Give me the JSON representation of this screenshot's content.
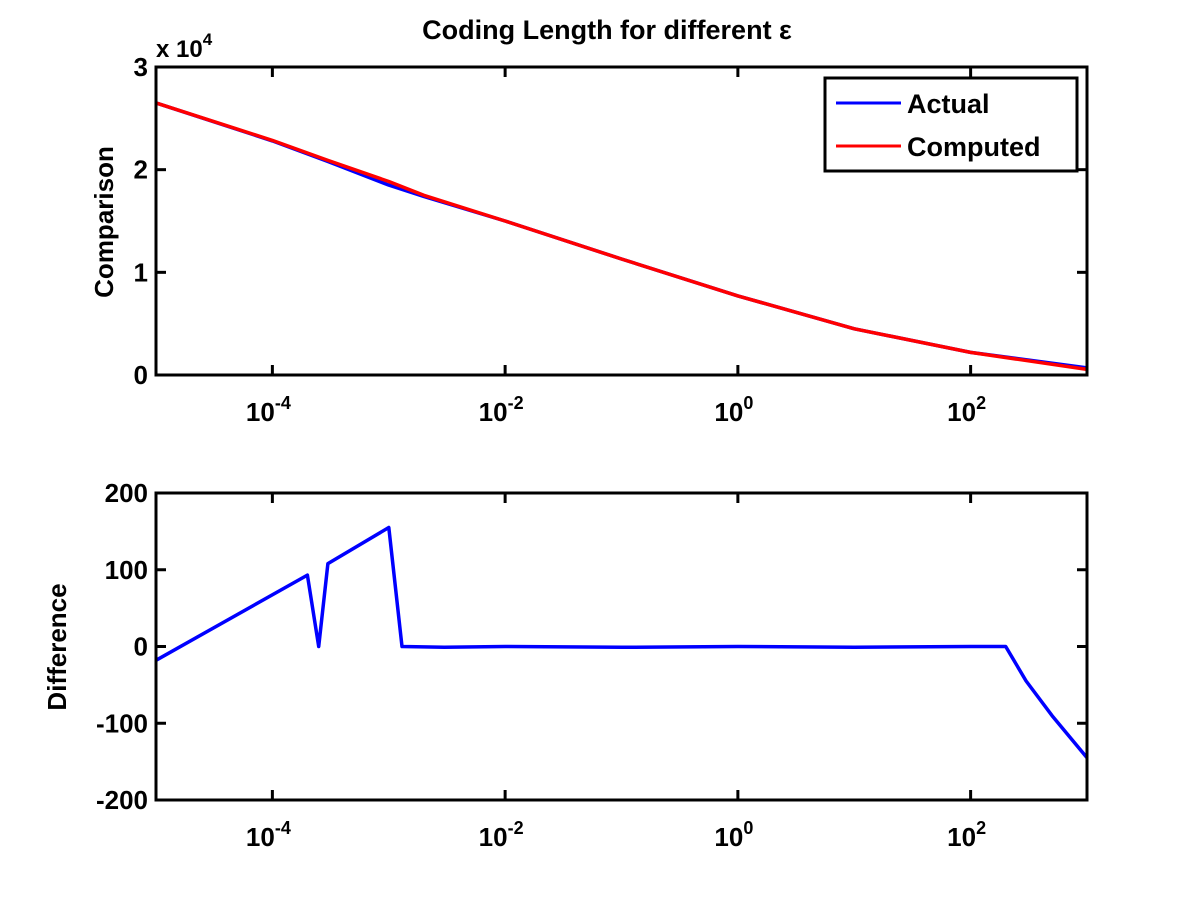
{
  "chart_data": [
    {
      "type": "line",
      "title": "Coding Length for different ε",
      "ylabel": "Comparison",
      "xscale": "log",
      "xlim": [
        1e-05,
        1000
      ],
      "ylim": [
        0,
        30000
      ],
      "y_exponent_label": "x 10",
      "y_exponent_power": "4",
      "x_ticks": [
        {
          "value": 0.0001,
          "base": "10",
          "exp": "-4"
        },
        {
          "value": 0.01,
          "base": "10",
          "exp": "-2"
        },
        {
          "value": 1,
          "base": "10",
          "exp": "0"
        },
        {
          "value": 100,
          "base": "10",
          "exp": "2"
        }
      ],
      "y_ticks": [
        {
          "value": 0,
          "label": "0"
        },
        {
          "value": 10000,
          "label": "1"
        },
        {
          "value": 20000,
          "label": "2"
        },
        {
          "value": 30000,
          "label": "3"
        }
      ],
      "legend_position": "top-right",
      "grid": false,
      "series": [
        {
          "name": "Actual",
          "color": "#0000ff",
          "x": [
            1e-05,
            0.0001,
            0.0003,
            0.001,
            0.002,
            0.01,
            0.1,
            1,
            10,
            100,
            1000
          ],
          "y": [
            26500,
            22800,
            20800,
            18500,
            17400,
            15000,
            11300,
            7700,
            4500,
            2200,
            700
          ]
        },
        {
          "name": "Computed",
          "color": "#ff0000",
          "x": [
            1e-05,
            0.0001,
            0.0003,
            0.001,
            0.002,
            0.01,
            0.1,
            1,
            10,
            100,
            1000
          ],
          "y": [
            26500,
            22850,
            20900,
            18850,
            17500,
            15000,
            11300,
            7700,
            4500,
            2200,
            550
          ]
        }
      ]
    },
    {
      "type": "line",
      "ylabel": "Difference",
      "xscale": "log",
      "xlim": [
        1e-05,
        1000
      ],
      "ylim": [
        -200,
        200
      ],
      "x_ticks": [
        {
          "value": 0.0001,
          "base": "10",
          "exp": "-4"
        },
        {
          "value": 0.01,
          "base": "10",
          "exp": "-2"
        },
        {
          "value": 1,
          "base": "10",
          "exp": "0"
        },
        {
          "value": 100,
          "base": "10",
          "exp": "2"
        }
      ],
      "y_ticks": [
        {
          "value": -200,
          "label": "-200"
        },
        {
          "value": -100,
          "label": "-100"
        },
        {
          "value": 0,
          "label": "0"
        },
        {
          "value": 100,
          "label": "100"
        },
        {
          "value": 200,
          "label": "200"
        }
      ],
      "grid": false,
      "series": [
        {
          "color": "#0000ff",
          "x": [
            1e-05,
            0.0002,
            0.00025,
            0.0003,
            0.001,
            0.0013,
            0.003,
            0.01,
            0.1,
            1,
            10,
            100,
            200,
            300,
            500,
            1000
          ],
          "y": [
            -18,
            93,
            0,
            108,
            155,
            0,
            -1,
            0,
            -1,
            0,
            -1,
            0,
            0,
            -45,
            -90,
            -145
          ]
        }
      ]
    }
  ]
}
